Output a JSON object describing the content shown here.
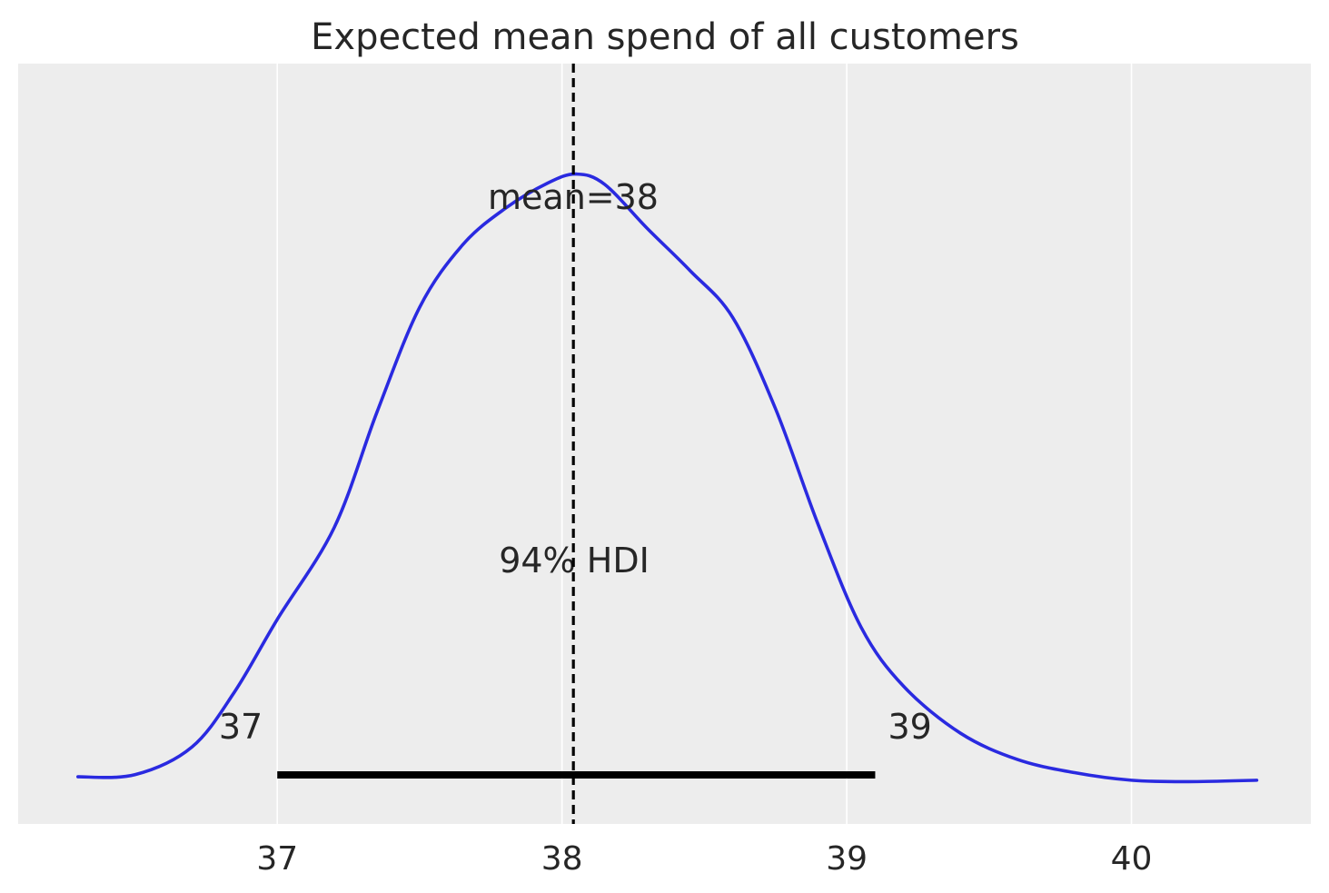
{
  "chart_data": {
    "type": "line",
    "title": "Expected mean spend of all customers",
    "xlabel": "",
    "ylabel": "",
    "xlim": [
      36.09,
      40.63
    ],
    "x_ticks": [
      37,
      38,
      39,
      40
    ],
    "x_tick_labels": [
      "37",
      "38",
      "39",
      "40"
    ],
    "grid": "vertical only",
    "y_axis_shown": false,
    "colors": {
      "background": "#ededed",
      "density": "#2a2ae0",
      "grid": "#ffffff",
      "hdi": "#000000",
      "mean_line": "#000000"
    },
    "series": [
      {
        "x": [
          36.3,
          36.5,
          36.7,
          36.85,
          37.0,
          37.2,
          37.35,
          37.5,
          37.65,
          37.8,
          37.95,
          38.05,
          38.15,
          38.3,
          38.45,
          38.6,
          38.75,
          38.9,
          39.05,
          39.2,
          39.4,
          39.6,
          39.8,
          40.0,
          40.2,
          40.44
        ],
        "y": [
          0.017,
          0.02,
          0.06,
          0.14,
          0.245,
          0.378,
          0.545,
          0.697,
          0.787,
          0.84,
          0.877,
          0.89,
          0.875,
          0.811,
          0.75,
          0.682,
          0.55,
          0.382,
          0.234,
          0.148,
          0.08,
          0.042,
          0.023,
          0.012,
          0.01,
          0.012
        ]
      }
    ],
    "mean_value": 38.04,
    "mean_label": "mean=38",
    "hdi": {
      "label": "94% HDI",
      "lower": 37.0,
      "upper": 39.1,
      "lower_label": "37",
      "upper_label": "39"
    }
  }
}
